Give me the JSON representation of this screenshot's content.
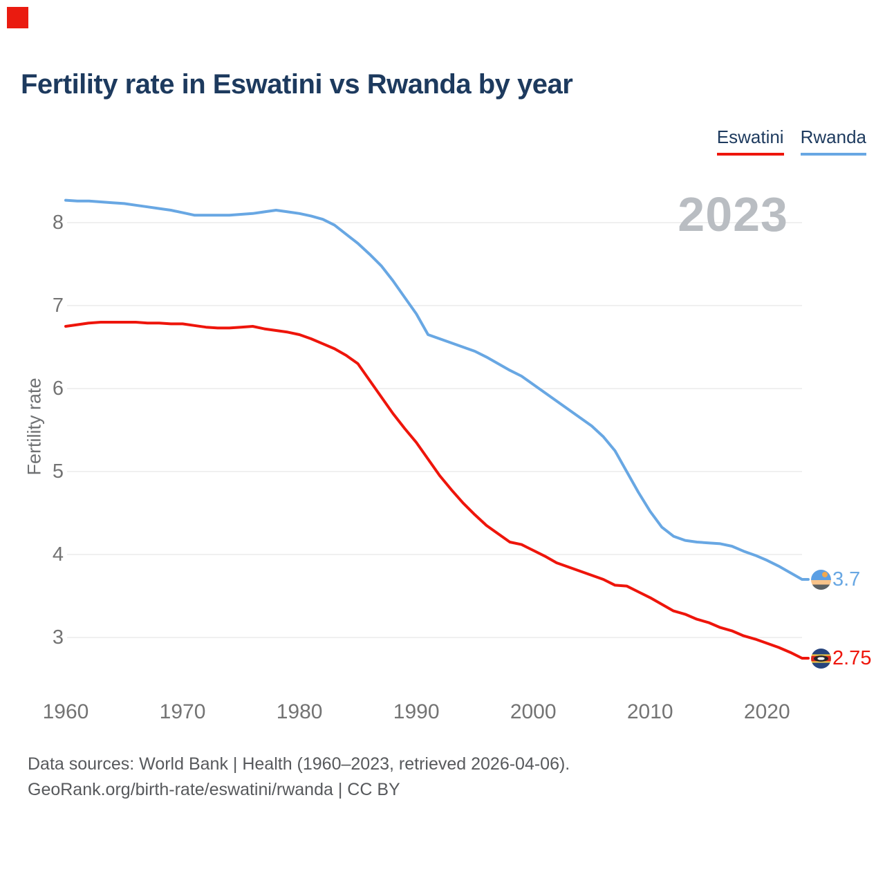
{
  "title": "Fertility rate in Eswatini vs Rwanda by year",
  "watermark": "2023",
  "legend": [
    {
      "label": "Eswatini",
      "color": "#ee150b"
    },
    {
      "label": "Rwanda",
      "color": "#68a7e3"
    }
  ],
  "end_labels": {
    "rwanda": {
      "value": "3.7",
      "flag_icon": "rwanda-flag"
    },
    "eswatini": {
      "value": "2.75",
      "flag_icon": "eswatini-flag"
    }
  },
  "footer": {
    "line1": "Data sources: World Bank | Health (1960–2023, retrieved 2026-04-06).",
    "line2": "GeoRank.org/birth-rate/eswatini/rwanda | CC BY"
  },
  "colors": {
    "eswatini": "#ee150b",
    "rwanda": "#68a7e3",
    "title_text": "#1d3a5e",
    "grid": "#ebebeb",
    "axis_text": "#737373",
    "watermark": "#b9bdc2",
    "footer_text": "#57595c",
    "marker": "#ea1b10"
  },
  "chart_data": {
    "type": "line",
    "title": "Fertility rate in Eswatini vs Rwanda by year",
    "xlabel": "",
    "ylabel": "Fertility rate",
    "xlim": [
      1960,
      2023
    ],
    "ylim": [
      2.5,
      8.5
    ],
    "grid": "horizontal",
    "legend_position": "top-right",
    "x_ticks": [
      1960,
      1970,
      1980,
      1990,
      2000,
      2010,
      2020
    ],
    "y_ticks": [
      3,
      4,
      5,
      6,
      7,
      8
    ],
    "x": [
      1960,
      1961,
      1962,
      1963,
      1964,
      1965,
      1966,
      1967,
      1968,
      1969,
      1970,
      1971,
      1972,
      1973,
      1974,
      1975,
      1976,
      1977,
      1978,
      1979,
      1980,
      1981,
      1982,
      1983,
      1984,
      1985,
      1986,
      1987,
      1988,
      1989,
      1990,
      1991,
      1992,
      1993,
      1994,
      1995,
      1996,
      1997,
      1998,
      1999,
      2000,
      2001,
      2002,
      2003,
      2004,
      2005,
      2006,
      2007,
      2008,
      2009,
      2010,
      2011,
      2012,
      2013,
      2014,
      2015,
      2016,
      2017,
      2018,
      2019,
      2020,
      2021,
      2022,
      2023
    ],
    "series": [
      {
        "name": "Eswatini",
        "color": "#ee150b",
        "final_value": 2.75,
        "values": [
          6.75,
          6.77,
          6.79,
          6.8,
          6.8,
          6.8,
          6.8,
          6.79,
          6.79,
          6.78,
          6.78,
          6.76,
          6.74,
          6.73,
          6.73,
          6.74,
          6.75,
          6.72,
          6.7,
          6.68,
          6.65,
          6.6,
          6.54,
          6.48,
          6.4,
          6.3,
          6.1,
          5.9,
          5.7,
          5.52,
          5.35,
          5.15,
          4.95,
          4.78,
          4.62,
          4.48,
          4.35,
          4.25,
          4.15,
          4.12,
          4.05,
          3.98,
          3.9,
          3.85,
          3.8,
          3.75,
          3.7,
          3.63,
          3.62,
          3.55,
          3.48,
          3.4,
          3.32,
          3.28,
          3.22,
          3.18,
          3.12,
          3.08,
          3.02,
          2.98,
          2.93,
          2.88,
          2.82,
          2.75
        ]
      },
      {
        "name": "Rwanda",
        "color": "#68a7e3",
        "final_value": 3.7,
        "values": [
          8.27,
          8.26,
          8.26,
          8.25,
          8.24,
          8.23,
          8.21,
          8.19,
          8.17,
          8.15,
          8.12,
          8.09,
          8.09,
          8.09,
          8.09,
          8.1,
          8.11,
          8.13,
          8.15,
          8.13,
          8.11,
          8.08,
          8.04,
          7.97,
          7.86,
          7.75,
          7.62,
          7.48,
          7.3,
          7.1,
          6.9,
          6.65,
          6.6,
          6.55,
          6.5,
          6.45,
          6.38,
          6.3,
          6.22,
          6.15,
          6.05,
          5.95,
          5.85,
          5.75,
          5.65,
          5.55,
          5.42,
          5.25,
          5.0,
          4.75,
          4.52,
          4.33,
          4.22,
          4.17,
          4.15,
          4.14,
          4.13,
          4.1,
          4.04,
          3.99,
          3.93,
          3.86,
          3.78,
          3.7
        ]
      }
    ]
  }
}
